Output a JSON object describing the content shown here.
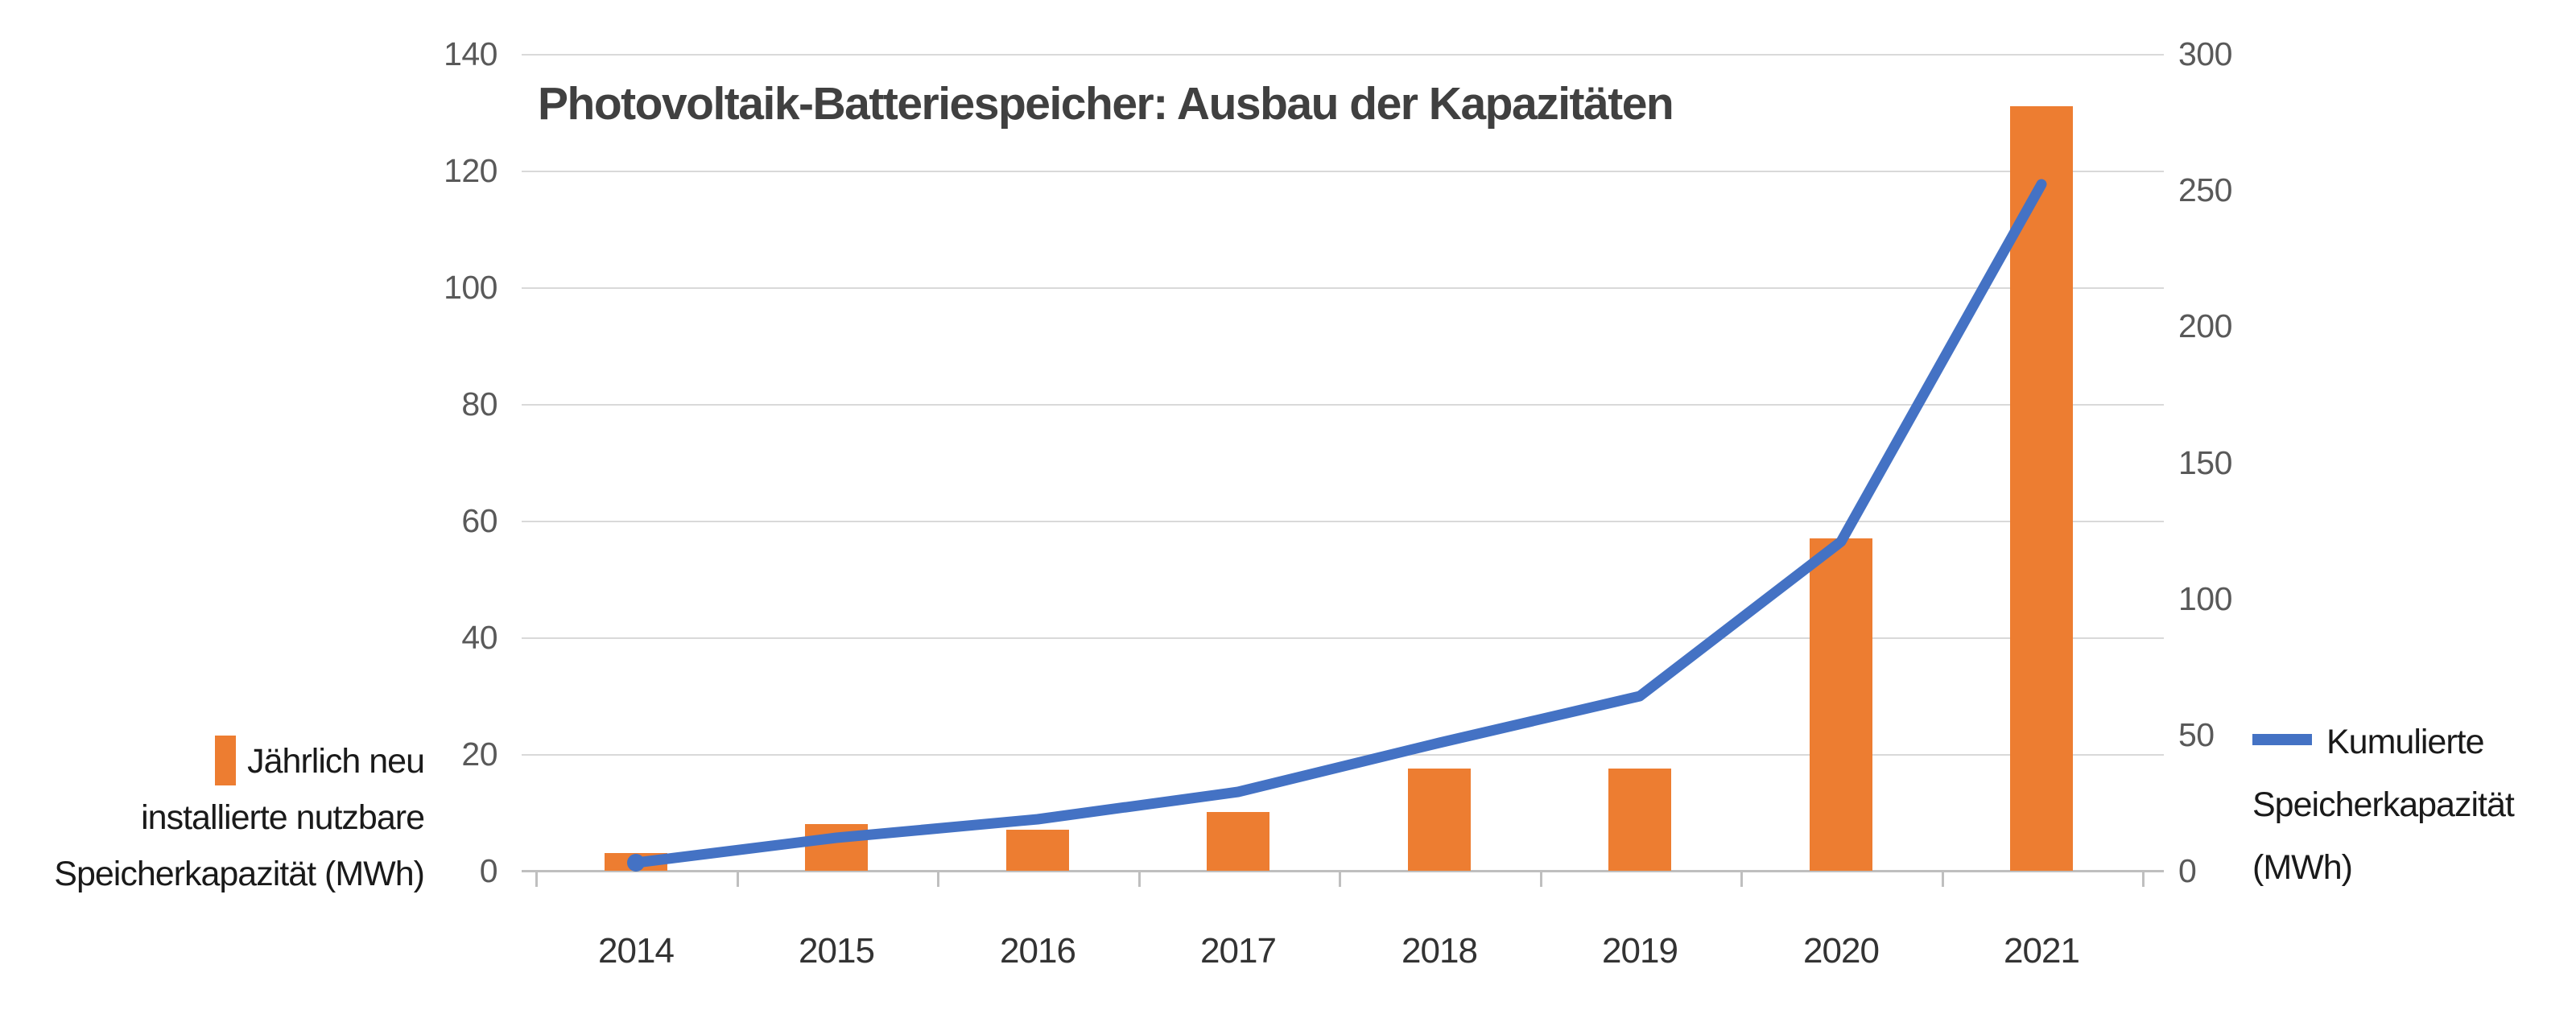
{
  "title": "Photovoltaik-Batteriespeicher: Ausbau der Kapazitäten",
  "legend_left": {
    "swatch_color": "#ED7D31",
    "lines": [
      "Jährlich neu",
      "installierte nutzbare",
      "Speicherkapazität (MWh)"
    ]
  },
  "legend_right": {
    "swatch_color": "#4472C4",
    "lines": [
      "Kumulierte",
      "Speicherkapazität",
      "(MWh)"
    ]
  },
  "chart_data": {
    "type": "bar",
    "subtype": "combo-bar-line",
    "title": "Photovoltaik-Batteriespeicher: Ausbau der Kapazitäten",
    "categories": [
      "2014",
      "2015",
      "2016",
      "2017",
      "2018",
      "2019",
      "2020",
      "2021"
    ],
    "series": [
      {
        "name": "Jährlich neu installierte nutzbare Speicherkapazität (MWh)",
        "type": "bar",
        "axis": "left",
        "color": "#ED7D31",
        "values": [
          3,
          8,
          7,
          10,
          17.5,
          17.5,
          57,
          131
        ]
      },
      {
        "name": "Kumulierte Speicherkapazität (MWh)",
        "type": "line",
        "axis": "right",
        "color": "#4472C4",
        "values": [
          3,
          12,
          19,
          29,
          47,
          64,
          121,
          252
        ]
      }
    ],
    "left_axis": {
      "min": 0,
      "max": 140,
      "step": 20,
      "ticks": [
        0,
        20,
        40,
        60,
        80,
        100,
        120,
        140
      ]
    },
    "right_axis": {
      "min": 0,
      "max": 300,
      "step": 50,
      "ticks": [
        0,
        50,
        100,
        150,
        200,
        250,
        300
      ]
    },
    "grid": true,
    "gridline_color": "#d9d9d9",
    "axis_line_color": "#bfbfbf",
    "tick_label_color": "#595959",
    "legend_position": "bottom-outside-left-and-right"
  }
}
